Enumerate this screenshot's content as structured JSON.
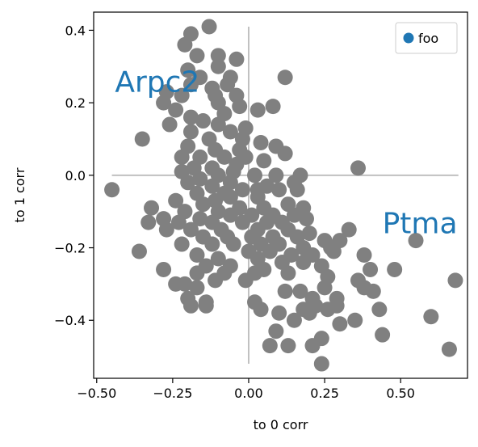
{
  "chart_data": {
    "type": "scatter",
    "xlabel": "to 0 corr",
    "ylabel": "to 1 corr",
    "xlim": [
      -0.51,
      0.72
    ],
    "ylim": [
      -0.56,
      0.45
    ],
    "x_ticks": [
      -0.5,
      -0.25,
      0.0,
      0.25,
      0.5
    ],
    "x_tick_labels": [
      "−0.50",
      "−0.25",
      "0.00",
      "0.25",
      "0.50"
    ],
    "y_ticks": [
      0.4,
      0.2,
      0.0,
      -0.2,
      -0.4
    ],
    "y_tick_labels": [
      "0.4",
      "0.2",
      "0.0",
      "−0.2",
      "−0.4"
    ],
    "grid": false,
    "point_color": "#808080",
    "crosshair_color": "#c0c0c0",
    "annotation_color": "#1f77b4",
    "crosshair": {
      "x_range": [
        -0.45,
        0.69
      ],
      "y_range": [
        -0.52,
        0.41
      ]
    },
    "legend": {
      "position": "top-right",
      "entries": [
        {
          "label": "foo",
          "color": "#1f77b4"
        }
      ]
    },
    "annotations": [
      {
        "text": "Arpc2",
        "x": -0.44,
        "y": 0.23
      },
      {
        "text": "Ptma",
        "x": 0.44,
        "y": -0.16
      }
    ],
    "points": [
      [
        -0.13,
        0.41
      ],
      [
        -0.19,
        0.39
      ],
      [
        -0.21,
        0.36
      ],
      [
        -0.17,
        0.33
      ],
      [
        -0.1,
        0.33
      ],
      [
        -0.04,
        0.32
      ],
      [
        -0.1,
        0.3
      ],
      [
        -0.2,
        0.29
      ],
      [
        -0.16,
        0.27
      ],
      [
        -0.06,
        0.27
      ],
      [
        0.12,
        0.27
      ],
      [
        -0.19,
        0.25
      ],
      [
        -0.07,
        0.25
      ],
      [
        -0.12,
        0.24
      ],
      [
        -0.27,
        0.23
      ],
      [
        -0.22,
        0.22
      ],
      [
        -0.11,
        0.22
      ],
      [
        -0.04,
        0.22
      ],
      [
        -0.28,
        0.2
      ],
      [
        -0.1,
        0.2
      ],
      [
        -0.03,
        0.19
      ],
      [
        -0.24,
        0.18
      ],
      [
        0.03,
        0.18
      ],
      [
        0.08,
        0.19
      ],
      [
        -0.19,
        0.16
      ],
      [
        -0.08,
        0.17
      ],
      [
        -0.26,
        0.14
      ],
      [
        -0.15,
        0.15
      ],
      [
        -0.1,
        0.14
      ],
      [
        -0.06,
        0.12
      ],
      [
        -0.01,
        0.13
      ],
      [
        -0.19,
        0.12
      ],
      [
        -0.13,
        0.1
      ],
      [
        -0.02,
        0.1
      ],
      [
        0.04,
        0.09
      ],
      [
        -0.35,
        0.1
      ],
      [
        -0.2,
        0.08
      ],
      [
        -0.11,
        0.07
      ],
      [
        -0.03,
        0.07
      ],
      [
        0.09,
        0.08
      ],
      [
        -0.22,
        0.05
      ],
      [
        -0.16,
        0.05
      ],
      [
        -0.08,
        0.05
      ],
      [
        -0.01,
        0.05
      ],
      [
        0.05,
        0.04
      ],
      [
        0.12,
        0.06
      ],
      [
        -0.18,
        0.02
      ],
      [
        -0.12,
        0.02
      ],
      [
        -0.04,
        0.03
      ],
      [
        -0.22,
        0.01
      ],
      [
        -0.1,
        0.0
      ],
      [
        -0.16,
        -0.01
      ],
      [
        -0.05,
        0.01
      ],
      [
        0.02,
        0.0
      ],
      [
        0.09,
        0.0
      ],
      [
        0.17,
        0.0
      ],
      [
        0.36,
        0.02
      ],
      [
        -0.2,
        -0.02
      ],
      [
        -0.12,
        -0.03
      ],
      [
        -0.06,
        -0.02
      ],
      [
        0.15,
        -0.02
      ],
      [
        -0.17,
        -0.05
      ],
      [
        -0.08,
        -0.05
      ],
      [
        -0.02,
        -0.04
      ],
      [
        -0.11,
        -0.07
      ],
      [
        0.03,
        -0.04
      ],
      [
        0.06,
        -0.03
      ],
      [
        -0.24,
        -0.07
      ],
      [
        -0.15,
        -0.08
      ],
      [
        -0.06,
        -0.06
      ],
      [
        0.03,
        -0.06
      ],
      [
        0.1,
        -0.04
      ],
      [
        0.16,
        -0.04
      ],
      [
        -0.45,
        -0.04
      ],
      [
        -0.32,
        -0.09
      ],
      [
        -0.21,
        -0.1
      ],
      [
        -0.1,
        -0.1
      ],
      [
        -0.03,
        -0.09
      ],
      [
        0.05,
        -0.09
      ],
      [
        0.13,
        -0.08
      ],
      [
        0.18,
        -0.09
      ],
      [
        -0.28,
        -0.12
      ],
      [
        -0.16,
        -0.12
      ],
      [
        -0.06,
        -0.11
      ],
      [
        0.01,
        -0.11
      ],
      [
        0.08,
        -0.11
      ],
      [
        0.15,
        -0.11
      ],
      [
        -0.33,
        -0.13
      ],
      [
        -0.23,
        -0.13
      ],
      [
        -0.12,
        -0.13
      ],
      [
        -0.02,
        -0.13
      ],
      [
        0.06,
        -0.13
      ],
      [
        0.11,
        -0.13
      ],
      [
        0.19,
        -0.12
      ],
      [
        -0.27,
        -0.15
      ],
      [
        -0.19,
        -0.15
      ],
      [
        -0.09,
        -0.15
      ],
      [
        0.03,
        -0.15
      ],
      [
        0.13,
        -0.15
      ],
      [
        0.2,
        -0.16
      ],
      [
        0.33,
        -0.15
      ],
      [
        -0.15,
        -0.17
      ],
      [
        -0.07,
        -0.17
      ],
      [
        0.01,
        -0.17
      ],
      [
        0.08,
        -0.17
      ],
      [
        0.16,
        -0.17
      ],
      [
        0.25,
        -0.18
      ],
      [
        0.3,
        -0.18
      ],
      [
        0.55,
        -0.18
      ],
      [
        -0.22,
        -0.19
      ],
      [
        -0.12,
        -0.19
      ],
      [
        -0.05,
        -0.19
      ],
      [
        0.04,
        -0.19
      ],
      [
        0.1,
        -0.19
      ],
      [
        0.18,
        -0.2
      ],
      [
        0.27,
        -0.2
      ],
      [
        -0.36,
        -0.21
      ],
      [
        -0.17,
        -0.22
      ],
      [
        0.0,
        -0.21
      ],
      [
        0.07,
        -0.21
      ],
      [
        0.14,
        -0.22
      ],
      [
        0.21,
        -0.22
      ],
      [
        0.28,
        -0.21
      ],
      [
        0.38,
        -0.22
      ],
      [
        -0.1,
        -0.23
      ],
      [
        0.03,
        -0.23
      ],
      [
        0.11,
        -0.24
      ],
      [
        0.18,
        -0.24
      ],
      [
        -0.14,
        -0.25
      ],
      [
        -0.06,
        -0.25
      ],
      [
        0.05,
        -0.26
      ],
      [
        0.24,
        -0.25
      ],
      [
        -0.28,
        -0.26
      ],
      [
        -0.17,
        -0.27
      ],
      [
        -0.08,
        -0.27
      ],
      [
        0.02,
        -0.27
      ],
      [
        0.13,
        -0.27
      ],
      [
        0.4,
        -0.26
      ],
      [
        0.48,
        -0.26
      ],
      [
        -0.21,
        -0.3
      ],
      [
        -0.11,
        -0.29
      ],
      [
        -0.01,
        -0.29
      ],
      [
        0.26,
        -0.28
      ],
      [
        0.36,
        -0.29
      ],
      [
        0.68,
        -0.29
      ],
      [
        -0.24,
        -0.3
      ],
      [
        -0.17,
        -0.31
      ],
      [
        0.02,
        -0.35
      ],
      [
        0.12,
        -0.32
      ],
      [
        0.17,
        -0.32
      ],
      [
        0.25,
        -0.31
      ],
      [
        0.38,
        -0.31
      ],
      [
        -0.2,
        -0.34
      ],
      [
        -0.14,
        -0.35
      ],
      [
        0.21,
        -0.34
      ],
      [
        0.29,
        -0.34
      ],
      [
        0.41,
        -0.32
      ],
      [
        -0.19,
        -0.36
      ],
      [
        0.18,
        -0.37
      ],
      [
        0.04,
        -0.37
      ],
      [
        0.22,
        -0.36
      ],
      [
        0.26,
        -0.37
      ],
      [
        -0.14,
        -0.36
      ],
      [
        0.29,
        -0.36
      ],
      [
        0.1,
        -0.38
      ],
      [
        0.2,
        -0.38
      ],
      [
        0.6,
        -0.39
      ],
      [
        0.35,
        -0.4
      ],
      [
        0.43,
        -0.37
      ],
      [
        0.15,
        -0.4
      ],
      [
        0.3,
        -0.41
      ],
      [
        0.09,
        -0.43
      ],
      [
        0.24,
        -0.45
      ],
      [
        0.44,
        -0.44
      ],
      [
        0.07,
        -0.47
      ],
      [
        0.13,
        -0.47
      ],
      [
        0.21,
        -0.47
      ],
      [
        0.66,
        -0.48
      ],
      [
        0.24,
        -0.52
      ]
    ]
  }
}
